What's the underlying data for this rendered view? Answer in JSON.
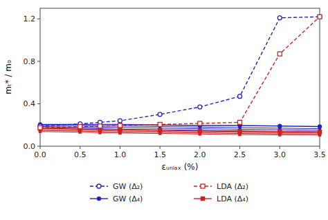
{
  "chart_data": {
    "type": "line",
    "x": [
      0,
      0.5,
      0.75,
      1.0,
      1.5,
      2.0,
      2.5,
      3.0,
      3.5
    ],
    "series": [
      {
        "color": "#2222bb",
        "marker": "circle",
        "line_style": "solid",
        "values": [
          0.195,
          0.195,
          0.19,
          0.19,
          0.185,
          0.18,
          0.175,
          0.17,
          0.165
        ]
      },
      {
        "color": "#2222bb",
        "marker": "circle",
        "line_style": "solid",
        "values": [
          0.185,
          0.18,
          0.18,
          0.175,
          0.17,
          0.165,
          0.16,
          0.155,
          0.15
        ]
      },
      {
        "color": "#2222bb",
        "marker": "circle",
        "line_style": "solid",
        "values": [
          0.175,
          0.17,
          0.165,
          0.16,
          0.155,
          0.15,
          0.145,
          0.14,
          0.135
        ]
      },
      {
        "color": "#cc2222",
        "marker": "square",
        "line_style": "solid",
        "values": [
          0.158,
          0.152,
          0.148,
          0.144,
          0.14,
          0.135,
          0.13,
          0.127,
          0.125
        ]
      },
      {
        "color": "#cc2222",
        "marker": "square",
        "line_style": "solid",
        "values": [
          0.148,
          0.142,
          0.138,
          0.134,
          0.13,
          0.125,
          0.12,
          0.117,
          0.115
        ]
      },
      {
        "color": "#cc2222",
        "marker": "square",
        "line_style": "solid",
        "values": [
          0.138,
          0.132,
          0.128,
          0.124,
          0.12,
          0.115,
          0.11,
          0.107,
          0.105
        ]
      },
      {
        "name": "GW (Δ₂)",
        "color": "#2222bb",
        "marker": "open-circle",
        "line_style": "dashed",
        "values": [
          0.19,
          0.21,
          0.225,
          0.24,
          0.3,
          0.37,
          0.47,
          1.21,
          1.22
        ]
      },
      {
        "name": "GW (Δ₄)",
        "color": "#2222bb",
        "marker": "circle",
        "line_style": "solid",
        "values": [
          0.205,
          0.205,
          0.205,
          0.205,
          0.2,
          0.195,
          0.195,
          0.19,
          0.185
        ]
      },
      {
        "name": "LDA (Δ₂)",
        "color": "#cc2222",
        "marker": "open-square",
        "line_style": "dashed",
        "values": [
          0.175,
          0.185,
          0.19,
          0.195,
          0.205,
          0.215,
          0.225,
          0.87,
          1.22
        ]
      },
      {
        "name": "LDA (Δ₄)",
        "color": "#cc2222",
        "marker": "square",
        "line_style": "solid",
        "values": [
          0.168,
          0.162,
          0.158,
          0.155,
          0.15,
          0.145,
          0.14,
          0.138,
          0.135
        ]
      }
    ],
    "xlabel": "εᵤₙᵢₐₓ (%)",
    "ylabel": "mₜ* / m₀",
    "xlim": [
      0,
      3.5
    ],
    "ylim": [
      0,
      1.3
    ],
    "xticks": [
      {
        "value": 0,
        "label": "0.0"
      },
      0.5,
      {
        "value": 1,
        "label": "1.0"
      },
      1.5,
      {
        "value": 2,
        "label": "2.0"
      },
      2.5,
      {
        "value": 3,
        "label": "3.0"
      },
      3.5
    ],
    "yticks": [
      {
        "value": 0,
        "label": "0.0"
      },
      0.4,
      0.8,
      1.2
    ],
    "legend": "bottom"
  }
}
